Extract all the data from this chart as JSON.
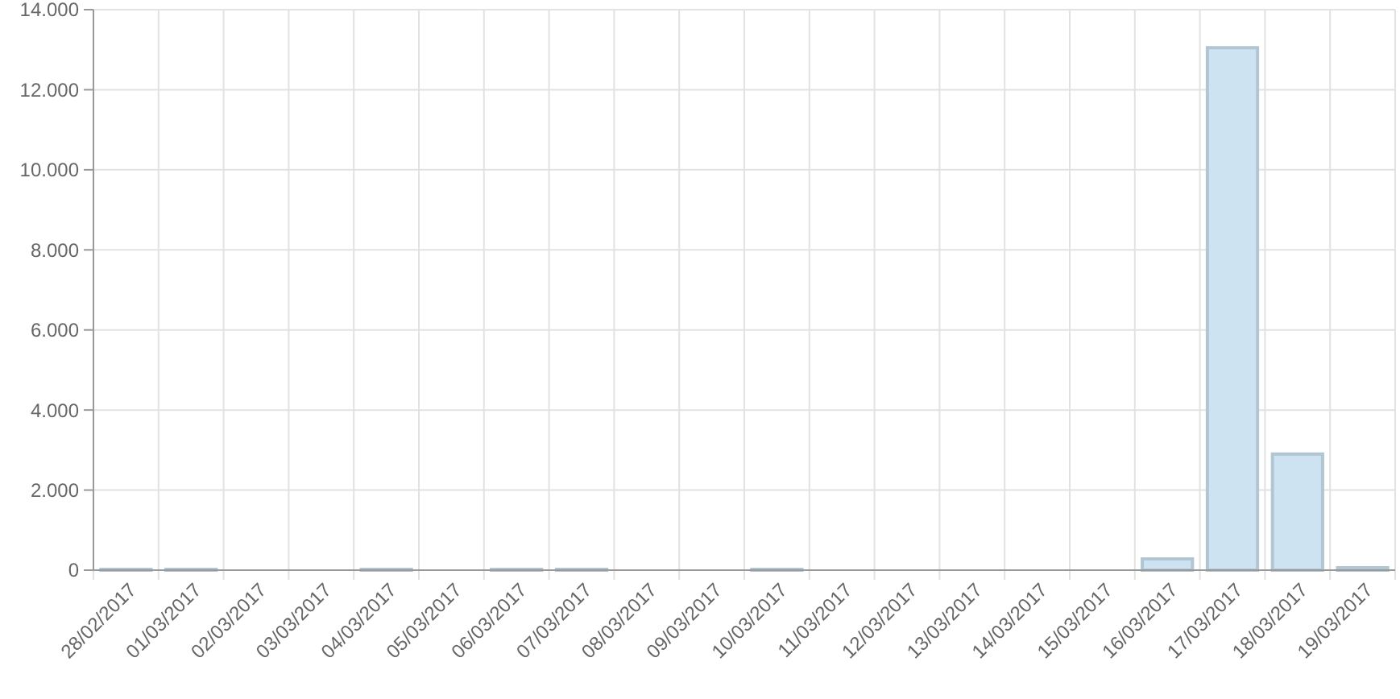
{
  "chart_data": {
    "type": "bar",
    "categories": [
      "28/02/2017",
      "01/03/2017",
      "02/03/2017",
      "03/03/2017",
      "04/03/2017",
      "05/03/2017",
      "06/03/2017",
      "07/03/2017",
      "08/03/2017",
      "09/03/2017",
      "10/03/2017",
      "11/03/2017",
      "12/03/2017",
      "13/03/2017",
      "14/03/2017",
      "15/03/2017",
      "16/03/2017",
      "17/03/2017",
      "18/03/2017",
      "19/03/2017"
    ],
    "values": [
      20,
      20,
      0,
      0,
      20,
      0,
      20,
      20,
      0,
      0,
      20,
      0,
      0,
      0,
      0,
      0,
      280,
      13050,
      2900,
      60
    ],
    "color": "#cde3f2",
    "ylim": [
      0,
      14000
    ],
    "yticks": [
      0,
      {
        "value": 2000,
        "label": "2.000"
      },
      {
        "value": 4000,
        "label": "4.000"
      },
      {
        "value": 6000,
        "label": "6.000"
      },
      {
        "value": 8000,
        "label": "8.000"
      },
      {
        "value": 10000,
        "label": "10.000"
      },
      {
        "value": 12000,
        "label": "12.000"
      },
      {
        "value": 14000,
        "label": "14.000"
      }
    ],
    "grid": true
  }
}
